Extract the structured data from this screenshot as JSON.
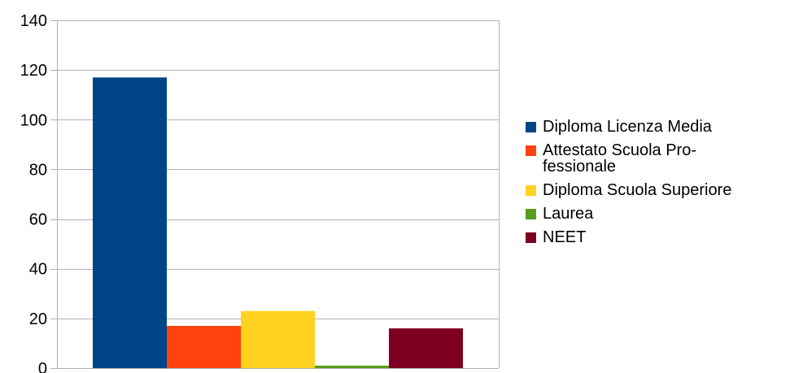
{
  "chart_data": {
    "type": "bar",
    "categories": [
      ""
    ],
    "ylim": [
      0,
      140
    ],
    "yticks": [
      0,
      20,
      40,
      60,
      80,
      100,
      120,
      140
    ],
    "grid": true,
    "legend_position": "right",
    "series": [
      {
        "name": "Diploma Licenza Media",
        "values": [
          117
        ],
        "color": "#004586"
      },
      {
        "name": "Attestato Scuola Pro-fessionale",
        "values": [
          17
        ],
        "color": "#ff420e"
      },
      {
        "name": "Diploma Scuola Superiore",
        "values": [
          23
        ],
        "color": "#ffd320"
      },
      {
        "name": "Laurea",
        "values": [
          1
        ],
        "color": "#579d1c"
      },
      {
        "name": "NEET",
        "values": [
          16
        ],
        "color": "#7e0021"
      }
    ]
  }
}
